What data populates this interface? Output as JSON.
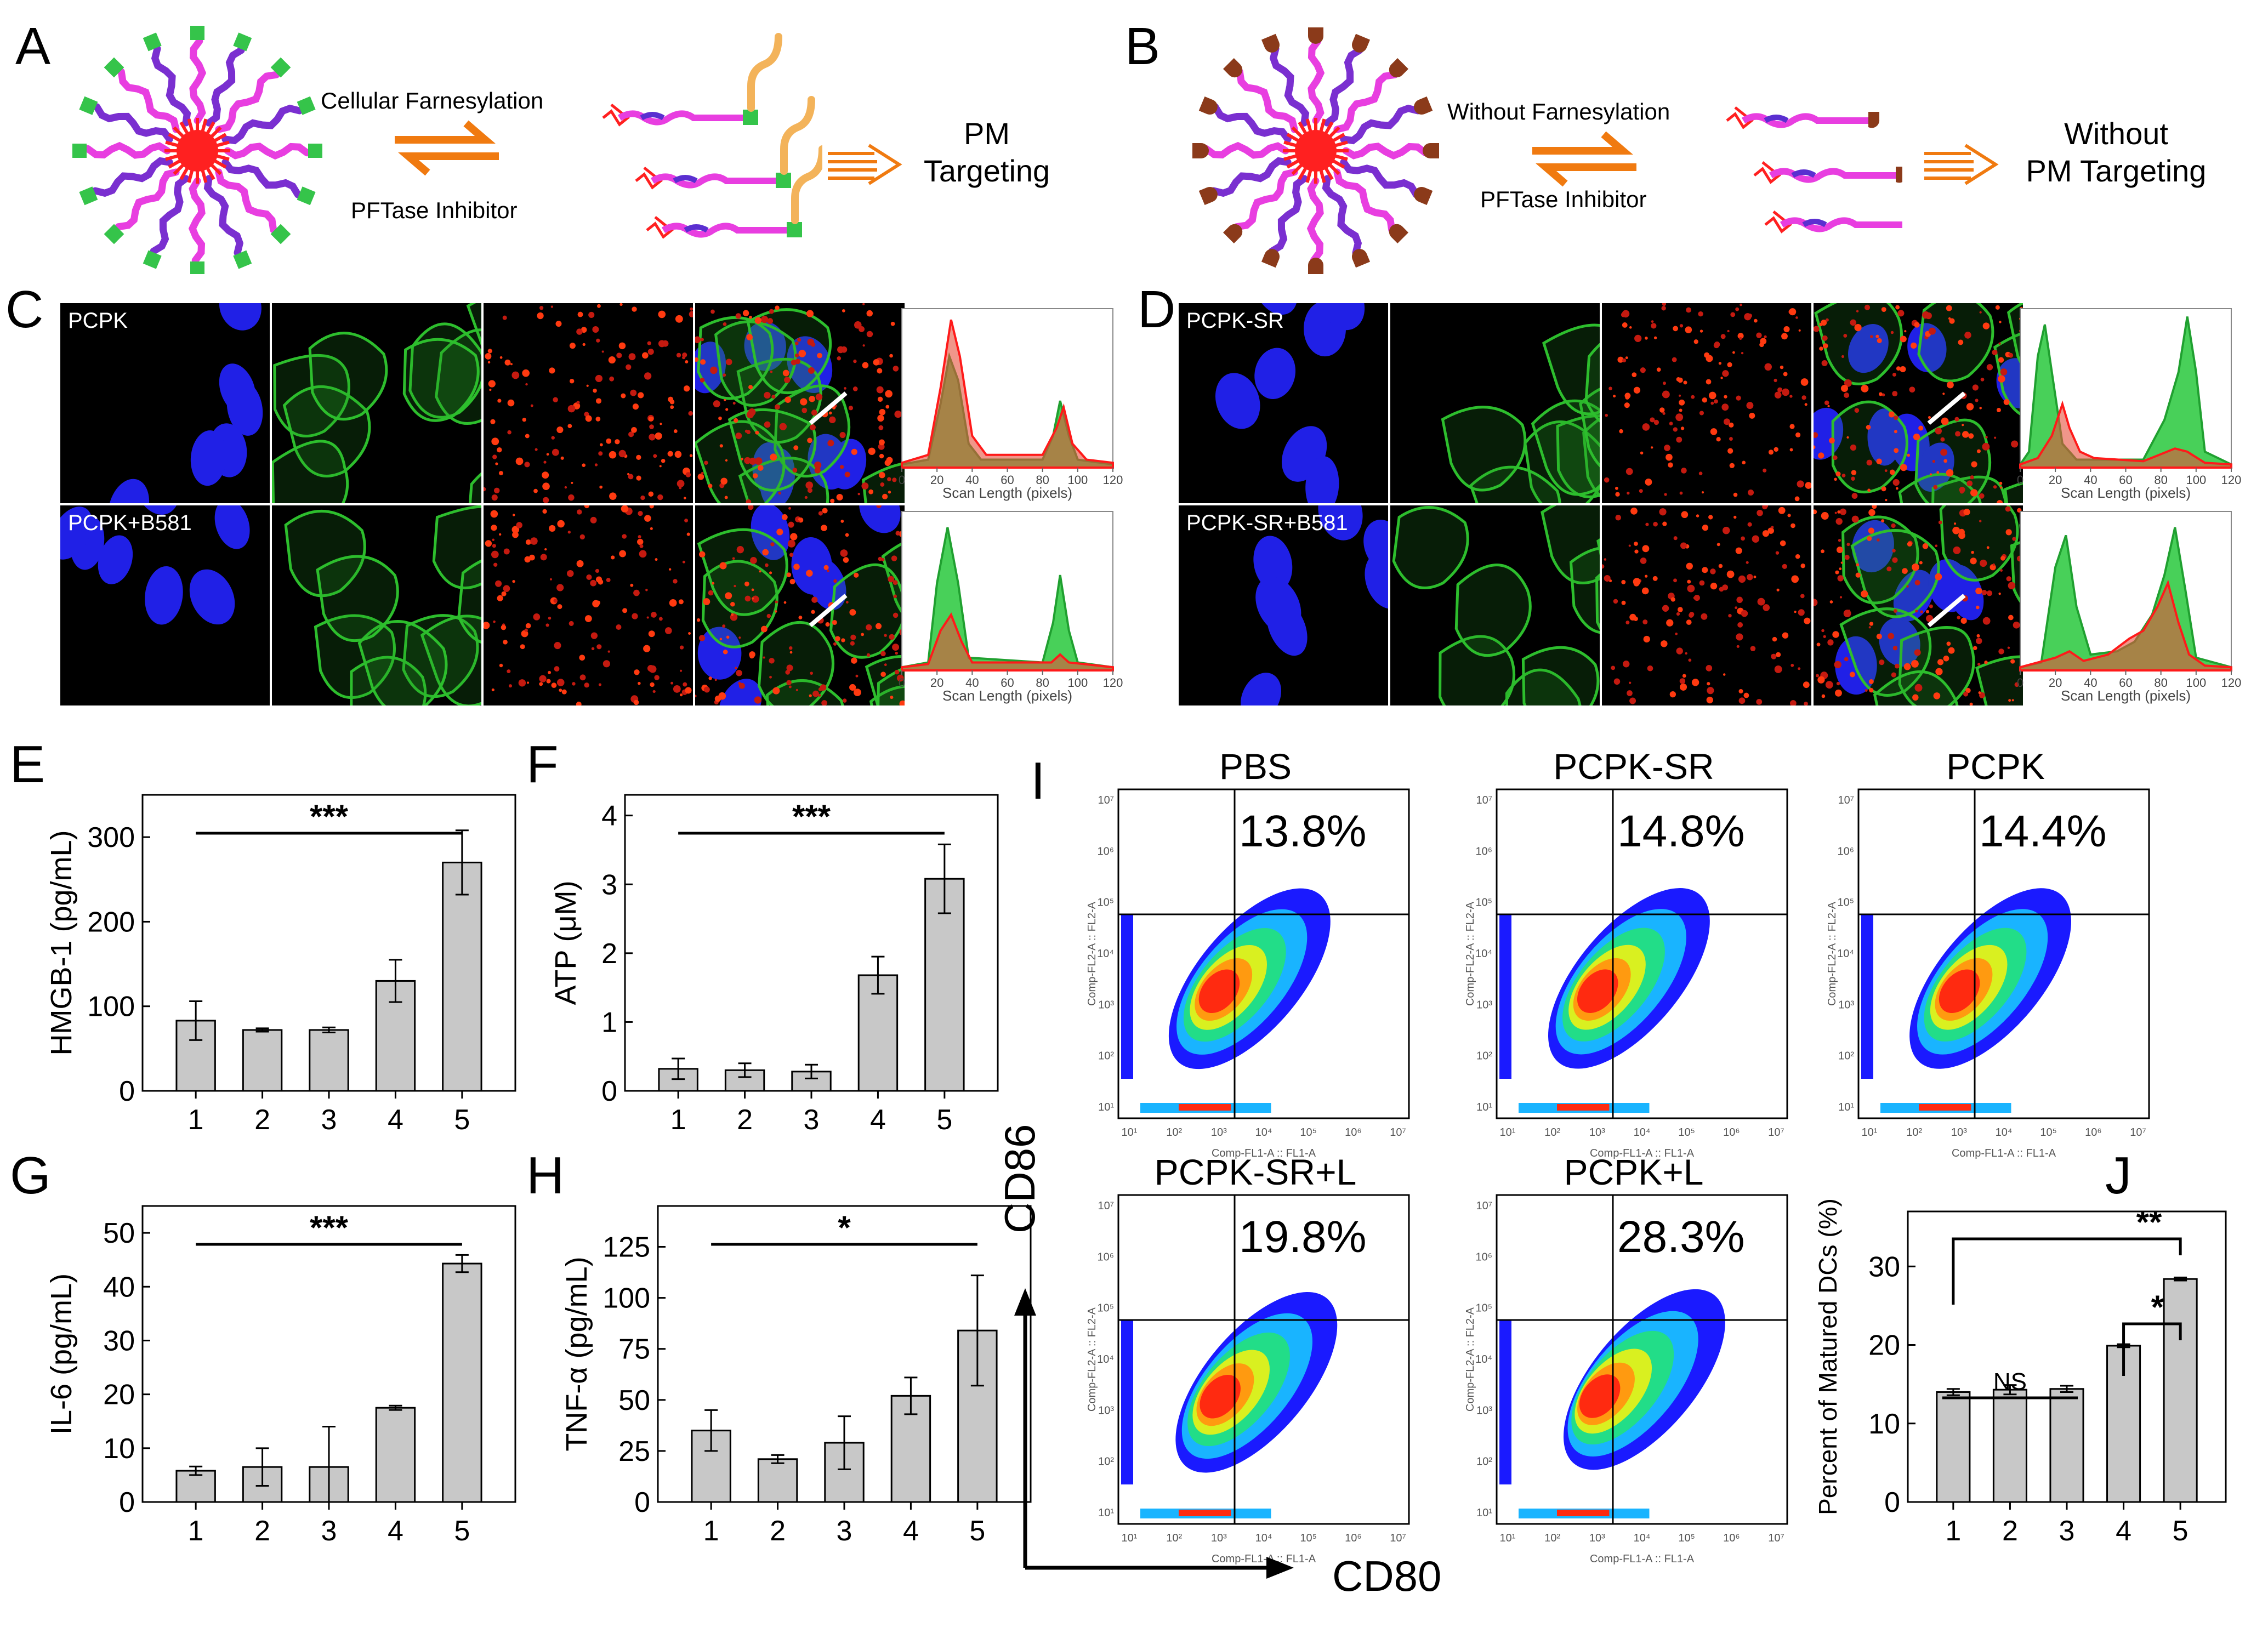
{
  "panel_labels": {
    "A": "A",
    "B": "B",
    "C": "C",
    "D": "D",
    "E": "E",
    "F": "F",
    "G": "G",
    "H": "H",
    "I": "I",
    "J": "J"
  },
  "scheme_a": {
    "top": "Cellular Farnesylation",
    "bottom": "PFTase Inhibitor",
    "result": "PM\nTargeting"
  },
  "scheme_b": {
    "top": "Without Farnesylation",
    "bottom": "PFTase Inhibitor",
    "result": "Without\nPM Targeting"
  },
  "colors": {
    "pink": "#e83ee0",
    "green": "#35c44a",
    "brown": "#8b3a1a",
    "red": "#ff2020",
    "orange": "#f07a10",
    "bar": "#c8c8c8",
    "blue": "#1a1aff"
  },
  "micro_c": {
    "row1": "PCPK",
    "row2": "PCPK+B581"
  },
  "micro_d": {
    "row1": "PCPK-SR",
    "row2": "PCPK-SR+B581"
  },
  "scan_xlabel": "Scan Length (pixels)",
  "scan_ticks": [
    "0",
    "20",
    "40",
    "60",
    "80",
    "100",
    "120"
  ],
  "chart_data": [
    {
      "id": "E",
      "type": "bar",
      "categories": [
        "1",
        "2",
        "3",
        "4",
        "5"
      ],
      "values": [
        83,
        72,
        72,
        130,
        270
      ],
      "errors": [
        23,
        2,
        3,
        25,
        38
      ],
      "ylabel": "HMGB-1 (pg/mL)",
      "ylim": [
        0,
        350
      ],
      "yticks": [
        "0",
        "100",
        "200",
        "300"
      ],
      "sig": "***"
    },
    {
      "id": "F",
      "type": "bar",
      "categories": [
        "1",
        "2",
        "3",
        "4",
        "5"
      ],
      "values": [
        0.32,
        0.3,
        0.28,
        1.68,
        3.08
      ],
      "errors": [
        0.15,
        0.1,
        0.1,
        0.27,
        0.5
      ],
      "ylabel": "ATP (μM)",
      "ylim": [
        0,
        4.3
      ],
      "yticks": [
        "0",
        "1",
        "2",
        "3",
        "4"
      ],
      "sig": "***"
    },
    {
      "id": "G",
      "type": "bar",
      "categories": [
        "1",
        "2",
        "3",
        "4",
        "5"
      ],
      "values": [
        5.8,
        6.5,
        6.5,
        17.5,
        44.3
      ],
      "errors": [
        0.8,
        3.5,
        7.5,
        0.4,
        1.6
      ],
      "ylabel": "IL-6 (pg/mL)",
      "ylim": [
        0,
        55
      ],
      "yticks": [
        "0",
        "10",
        "20",
        "30",
        "40",
        "50"
      ],
      "sig": "***"
    },
    {
      "id": "H",
      "type": "bar",
      "categories": [
        "1",
        "2",
        "3",
        "4",
        "5"
      ],
      "values": [
        35,
        21,
        29,
        52,
        84
      ],
      "errors": [
        10,
        2,
        13,
        9,
        27
      ],
      "ylabel": "TNF-α (pg/mL)",
      "ylim": [
        0,
        145
      ],
      "yticks": [
        "0",
        "25",
        "50",
        "75",
        "100",
        "125"
      ],
      "sig": "*"
    },
    {
      "id": "J",
      "type": "bar",
      "categories": [
        "1",
        "2",
        "3",
        "4",
        "5"
      ],
      "values": [
        14,
        14.3,
        14.4,
        19.9,
        28.4
      ],
      "errors": [
        0.4,
        0.6,
        0.4,
        0.2,
        0.2
      ],
      "ylabel": "Percent of Matured DCs (%)",
      "ylim": [
        0,
        37
      ],
      "yticks": [
        "0",
        "10",
        "20",
        "30"
      ],
      "sig": "**",
      "sig2": "*",
      "ns": "NS"
    }
  ],
  "flow": {
    "panels": [
      {
        "title": "PBS",
        "pct": "13.8%"
      },
      {
        "title": "PCPK-SR",
        "pct": "14.8%"
      },
      {
        "title": "PCPK",
        "pct": "14.4%"
      },
      {
        "title": "PCPK-SR+L",
        "pct": "19.8%"
      },
      {
        "title": "PCPK+L",
        "pct": "28.3%"
      }
    ],
    "x_small": "Comp-FL1-A :: FL1-A",
    "y_small": "Comp-FL2-A :: FL2-A",
    "x_big": "CD80",
    "y_big": "CD86",
    "ticks": [
      "10¹",
      "10²",
      "10³",
      "10⁴",
      "10⁵",
      "10⁶",
      "10⁷"
    ]
  }
}
